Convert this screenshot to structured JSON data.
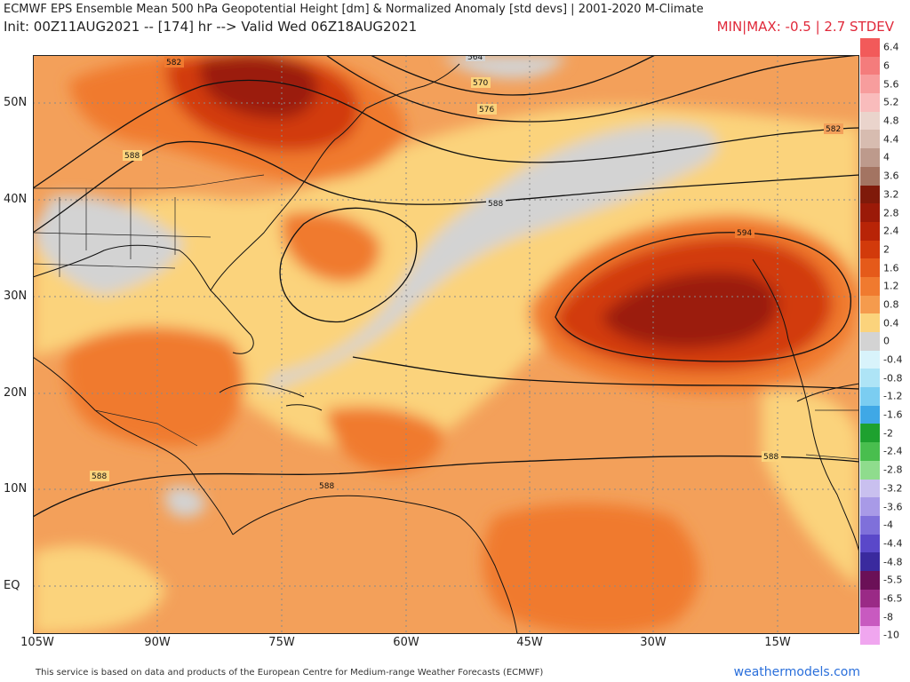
{
  "header": {
    "title": "ECMWF EPS Ensemble Mean 500 hPa Geopotential Height [dm] & Normalized Anomaly [std devs] | 2001-2020 M-Climate",
    "init": "Init: 00Z11AUG2021 -- [174] hr --> Valid Wed 06Z18AUG2021",
    "minmax": "MIN|MAX: -0.5 | 2.7 STDEV"
  },
  "axes": {
    "lat_labels": [
      "50N",
      "40N",
      "30N",
      "20N",
      "10N",
      "EQ"
    ],
    "lon_labels": [
      "105W",
      "90W",
      "75W",
      "60W",
      "45W",
      "30W",
      "15W"
    ]
  },
  "contours": {
    "labels": [
      "570",
      "576",
      "582",
      "588",
      "588",
      "588",
      "588",
      "594",
      "582",
      "588",
      "564"
    ]
  },
  "colorbar": {
    "labels": [
      "6.4",
      "6",
      "5.6",
      "5.2",
      "4.8",
      "4.4",
      "4",
      "3.6",
      "3.2",
      "2.8",
      "2.4",
      "2",
      "1.6",
      "1.2",
      "0.8",
      "0.4",
      "0",
      "-0.4",
      "-0.8",
      "-1.2",
      "-1.6",
      "-2",
      "-2.4",
      "-2.8",
      "-3.2",
      "-3.6",
      "-4",
      "-4.4",
      "-4.8",
      "-5.5",
      "-6.5",
      "-8",
      "-10"
    ],
    "colors": [
      "#f25a5a",
      "#f47c7c",
      "#f79d9d",
      "#f9bcbc",
      "#ead4cc",
      "#d7bcb0",
      "#bd9a8c",
      "#a37462",
      "#7f1a0a",
      "#9b1a08",
      "#b82407",
      "#d23a0b",
      "#e55a1a",
      "#f07a2f",
      "#f59b4d",
      "#fbd37c",
      "#d3d3d3",
      "#d8f3fb",
      "#aee4f6",
      "#7bcdf1",
      "#3fa8e6",
      "#1ea12f",
      "#49be4e",
      "#8fdc8d",
      "#c9c0ef",
      "#a89ae7",
      "#7f70da",
      "#5a48c9",
      "#3a2a9e",
      "#6b1057",
      "#9a2a86",
      "#c85ac0",
      "#f0a6ef"
    ]
  },
  "footer": {
    "text": "This service is based on data and products of the European Centre for Medium-range Weather Forecasts (ECMWF)",
    "brand": "weathermodels.com"
  }
}
